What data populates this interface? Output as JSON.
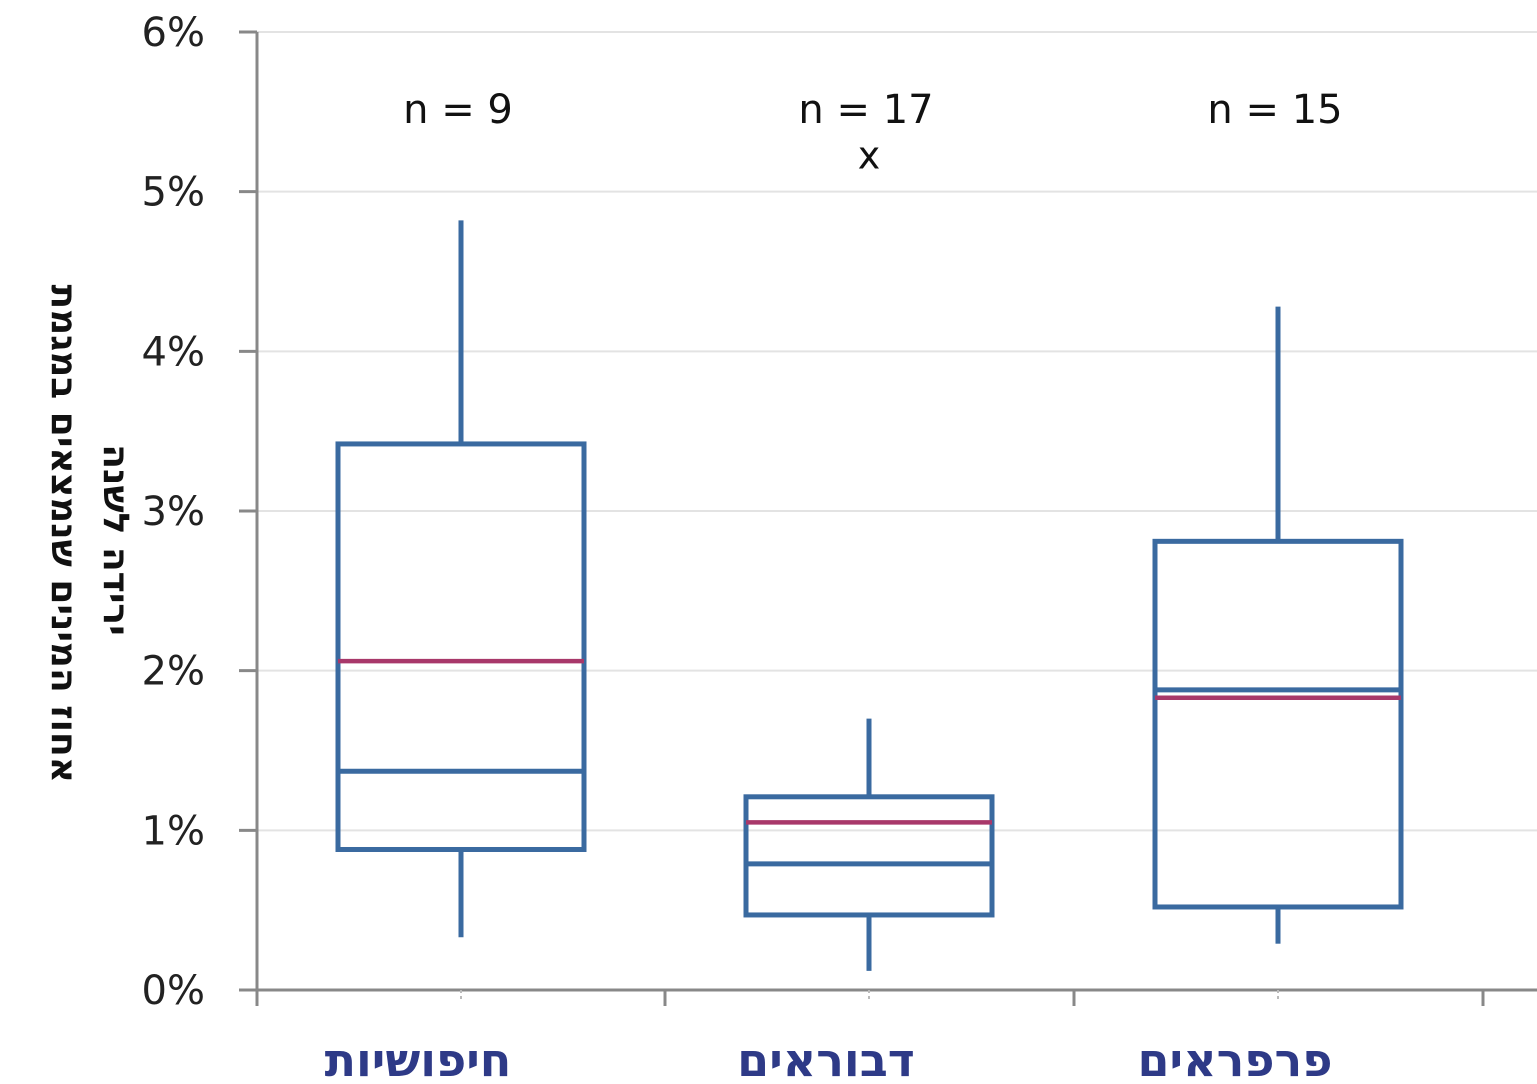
{
  "chart_data": {
    "type": "box",
    "ylabel_lines": [
      "אחוז המינים שנמצאים במגמת",
      "ירידה לשנה"
    ],
    "yticks": [
      "0%",
      "1%",
      "2%",
      "3%",
      "4%",
      "5%",
      "6%"
    ],
    "ylim": [
      0,
      6
    ],
    "grid": true,
    "colors": {
      "box": "#3a6aa0",
      "mean": "#a8386a",
      "grid": "#e3e3e3",
      "axis": "#888888",
      "category": "#2e3a87"
    },
    "categories": [
      "חיפושיות",
      "דבוראים",
      "פרפראים"
    ],
    "boxes": [
      {
        "category": "חיפושיות",
        "n_label": "n = 9",
        "whisker_low": 0.33,
        "q1": 0.88,
        "median": 1.37,
        "q3": 3.42,
        "whisker_high": 4.82,
        "mean": 2.06,
        "outliers": []
      },
      {
        "category": "דבוראים",
        "n_label": "n = 17",
        "whisker_low": 0.12,
        "q1": 0.47,
        "median": 0.79,
        "q3": 1.21,
        "whisker_high": 1.7,
        "mean": 1.05,
        "outliers": [
          {
            "value": 5.22,
            "symbol": "x"
          }
        ]
      },
      {
        "category": "פרפראים",
        "n_label": "n = 15",
        "whisker_low": 0.29,
        "q1": 0.52,
        "median": 1.88,
        "q3": 2.81,
        "whisker_high": 4.28,
        "mean": 1.83,
        "outliers": []
      }
    ]
  }
}
